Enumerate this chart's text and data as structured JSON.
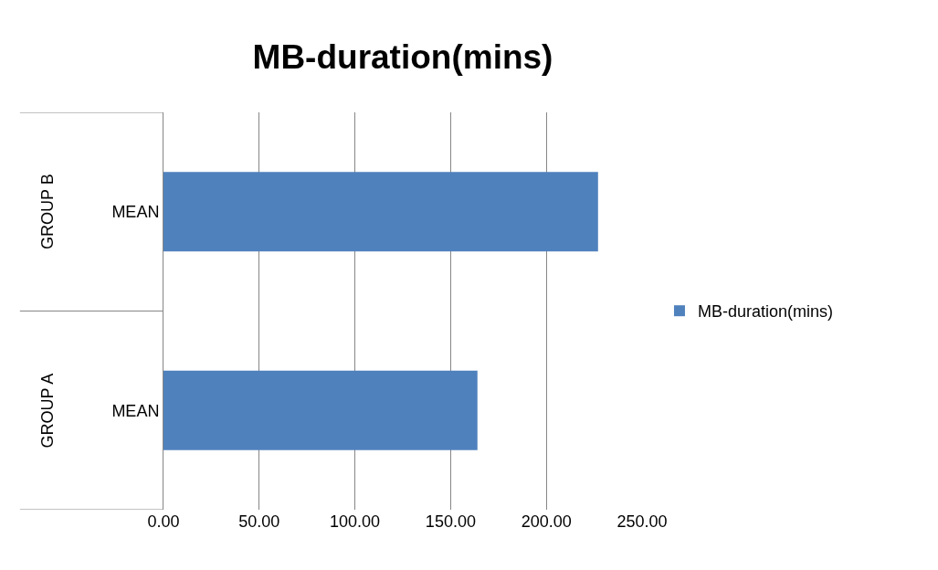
{
  "chart_data": {
    "type": "bar",
    "orientation": "horizontal",
    "title": "MB-duration(mins)",
    "categories": [
      "MEAN",
      "MEAN"
    ],
    "annotations": [
      "GROUP B",
      "GROUP A"
    ],
    "series": [
      {
        "name": "MB-duration(mins)",
        "color": "#4f81bd",
        "values": [
          227,
          164
        ]
      }
    ],
    "xlim": [
      0,
      250
    ],
    "xticks": [
      {
        "value": 0,
        "label": "0.00"
      },
      {
        "value": 50,
        "label": "50.00"
      },
      {
        "value": 100,
        "label": "100.00"
      },
      {
        "value": 150,
        "label": "150.00"
      },
      {
        "value": 200,
        "label": "200.00"
      },
      {
        "value": 250,
        "label": "250.00"
      }
    ],
    "grid": "x",
    "legend": "right"
  }
}
